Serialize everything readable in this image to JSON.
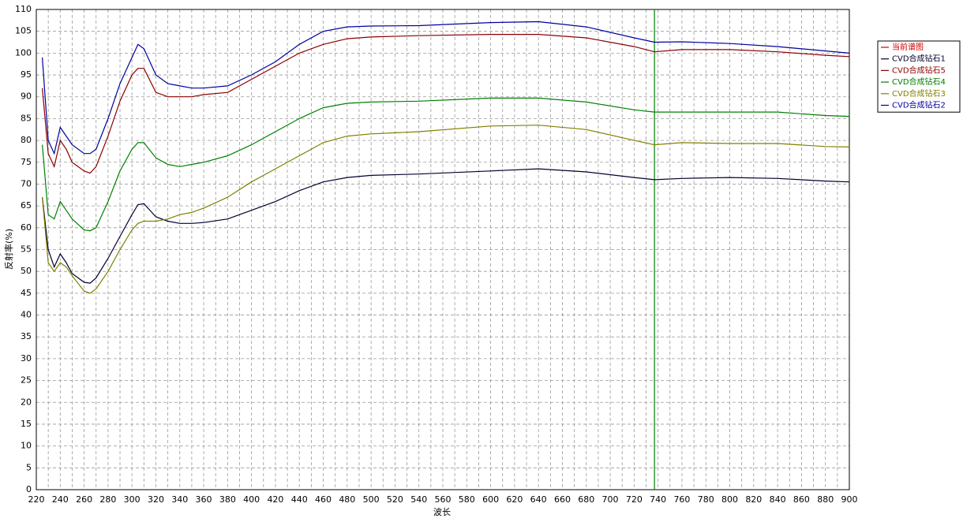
{
  "chart_data": {
    "type": "line",
    "xlabel": "波长",
    "ylabel": "反射率(%)",
    "x": [
      225,
      230,
      235,
      240,
      245,
      250,
      260,
      265,
      270,
      280,
      290,
      300,
      305,
      310,
      320,
      330,
      340,
      350,
      360,
      380,
      400,
      420,
      440,
      460,
      480,
      500,
      540,
      600,
      640,
      680,
      720,
      737,
      760,
      800,
      840,
      880,
      900
    ],
    "series": [
      {
        "name": "当前谱图",
        "color": "#d00000",
        "values": [
          null,
          null,
          null,
          null,
          null,
          null,
          null,
          null,
          null,
          null,
          null,
          null,
          null,
          null,
          null,
          null,
          null,
          null,
          null,
          null,
          null,
          null,
          null,
          null,
          null,
          null,
          null,
          null,
          null,
          null,
          null,
          null,
          null,
          null,
          null,
          null,
          null
        ]
      },
      {
        "name": "CVD合成钻石1",
        "color": "#000030",
        "values": [
          67,
          55,
          51,
          54,
          52,
          49.5,
          47.5,
          47.3,
          48.5,
          53,
          58,
          63,
          65.3,
          65.5,
          62.5,
          61.5,
          61,
          61,
          61.2,
          62,
          64,
          66,
          68.5,
          70.5,
          71.5,
          72,
          72.3,
          73,
          73.5,
          72.8,
          71.5,
          71,
          71.3,
          71.5,
          71.3,
          70.7,
          70.5
        ]
      },
      {
        "name": "CVD合成钻石5",
        "color": "#8b0000",
        "values": [
          92,
          77,
          74,
          80,
          78,
          75,
          73,
          72.5,
          74,
          81,
          89,
          95,
          96.5,
          96.5,
          91,
          90,
          90,
          90,
          90.5,
          91,
          94,
          97,
          100,
          102,
          103.3,
          103.7,
          104,
          104.3,
          104.3,
          103.5,
          101.5,
          100.3,
          100.8,
          100.8,
          100.3,
          99.5,
          99.2
        ]
      },
      {
        "name": "CVD合成钻石4",
        "color": "#008000",
        "values": [
          79,
          63,
          62,
          66,
          64,
          62,
          59.5,
          59.3,
          60,
          66,
          73,
          78,
          79.5,
          79.5,
          76,
          74.5,
          74,
          74.5,
          75,
          76.5,
          79,
          82,
          85,
          87.5,
          88.5,
          88.8,
          89,
          89.7,
          89.7,
          88.8,
          87,
          86.5,
          86.5,
          86.5,
          86.5,
          85.7,
          85.5
        ]
      },
      {
        "name": "CVD合成钻石3",
        "color": "#808000",
        "values": [
          67,
          52,
          50,
          52,
          51,
          49,
          45.5,
          45,
          46,
          50,
          55,
          59.5,
          61,
          61.5,
          61.5,
          62,
          63,
          63.5,
          64.5,
          67,
          70.5,
          73.5,
          76.5,
          79.5,
          81,
          81.5,
          82,
          83.3,
          83.5,
          82.5,
          80,
          79,
          79.5,
          79.3,
          79.3,
          78.6,
          78.5
        ]
      },
      {
        "name": "CVD合成钻石2",
        "color": "#0000a0",
        "values": [
          99,
          80,
          77,
          83,
          81,
          79,
          77,
          77,
          78,
          85,
          93,
          99,
          102,
          101,
          95,
          93,
          92.5,
          92,
          92,
          92.5,
          95,
          98,
          102,
          105,
          106,
          106.2,
          106.3,
          107,
          107.2,
          106,
          103.5,
          102.5,
          102.6,
          102.2,
          101.5,
          100.5,
          100
        ]
      }
    ],
    "vline": {
      "x": 737,
      "color": "#008000"
    },
    "xlim": [
      220,
      900
    ],
    "xticks": [
      220,
      240,
      260,
      280,
      300,
      320,
      340,
      360,
      380,
      400,
      420,
      440,
      460,
      480,
      500,
      520,
      540,
      560,
      580,
      600,
      620,
      640,
      660,
      680,
      700,
      720,
      740,
      760,
      780,
      800,
      820,
      840,
      860,
      880,
      900
    ],
    "ylim": [
      0,
      110
    ],
    "yticks": [
      0,
      5,
      10,
      15,
      20,
      25,
      30,
      35,
      40,
      45,
      50,
      55,
      60,
      65,
      70,
      75,
      80,
      85,
      90,
      95,
      100,
      105,
      110
    ],
    "grid": true,
    "xgrid_minor": true,
    "legend": "right"
  }
}
